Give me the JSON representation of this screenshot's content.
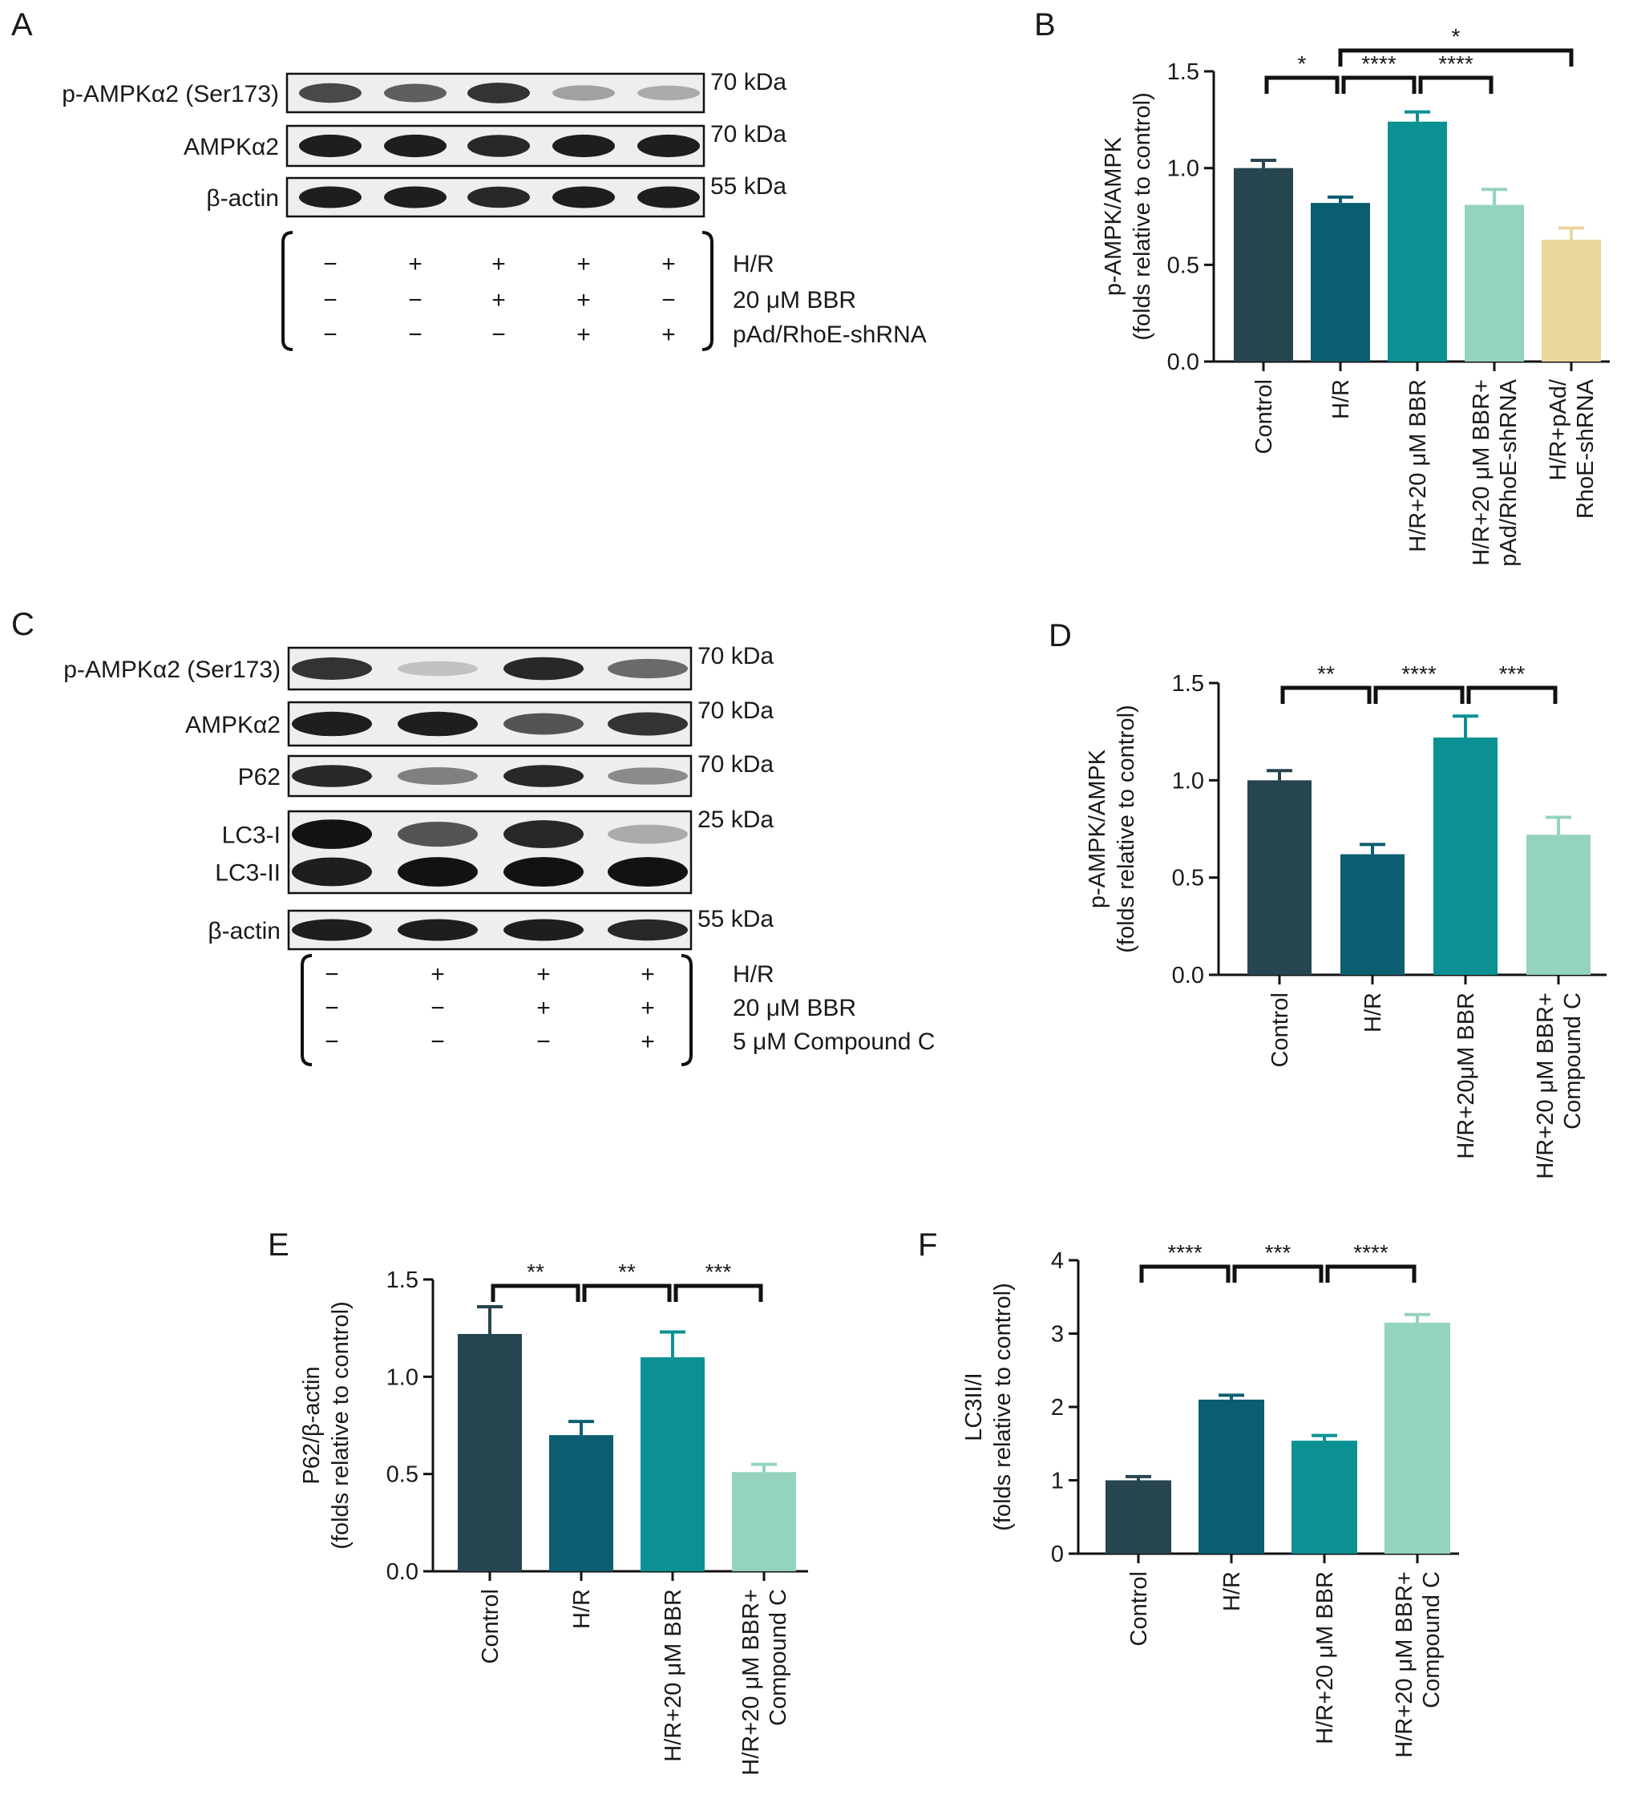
{
  "colors": {
    "control": "#27454f",
    "hr": "#0b5e70",
    "hr_bbr": "#0b9193",
    "light": "#94d3bd",
    "tan": "#ead59c",
    "blot_band": "#121212",
    "blot_bg": "#eeeeee"
  },
  "blots": [
    {
      "panel": "A",
      "rows": [
        {
          "label": "p-AMPKα2 (Ser173)",
          "kda": "70 kDa",
          "intensity": [
            0.75,
            0.65,
            0.85,
            0.35,
            0.3
          ]
        },
        {
          "label": "AMPKα2",
          "kda": "70 kDa",
          "intensity": [
            0.95,
            0.95,
            0.9,
            0.95,
            0.95
          ]
        },
        {
          "label": "β-actin",
          "kda": "55 kDa",
          "intensity": [
            0.95,
            0.95,
            0.9,
            0.95,
            0.95
          ]
        }
      ],
      "conditions": [
        {
          "name": "H/R",
          "signs": [
            "−",
            "+",
            "+",
            "+",
            "+"
          ]
        },
        {
          "name": "20 μM BBR",
          "signs": [
            "−",
            "−",
            "+",
            "+",
            "−"
          ]
        },
        {
          "name": "pAd/RhoE-shRNA",
          "signs": [
            "−",
            "−",
            "−",
            "+",
            "+"
          ]
        }
      ]
    },
    {
      "panel": "C",
      "rows": [
        {
          "label": "p-AMPKα2 (Ser173)",
          "kda": "70 kDa",
          "intensity": [
            0.85,
            0.2,
            0.9,
            0.6
          ]
        },
        {
          "label": "AMPKα2",
          "kda": "70 kDa",
          "intensity": [
            0.95,
            0.95,
            0.7,
            0.85
          ]
        },
        {
          "label": "P62",
          "kda": "70 kDa",
          "intensity": [
            0.9,
            0.5,
            0.9,
            0.45
          ]
        },
        {
          "label": "LC3-I",
          "kda": "25 kDa",
          "intensity": [
            1.0,
            0.7,
            0.9,
            0.3
          ],
          "sublabel": "LC3-II",
          "intensity2": [
            0.95,
            1.0,
            1.0,
            1.0
          ]
        },
        {
          "label": "β-actin",
          "kda": "55 kDa",
          "intensity": [
            0.95,
            0.95,
            0.95,
            0.9
          ]
        }
      ],
      "conditions": [
        {
          "name": "H/R",
          "signs": [
            "−",
            "+",
            "+",
            "+"
          ]
        },
        {
          "name": "20 μM BBR",
          "signs": [
            "−",
            "−",
            "+",
            "+"
          ]
        },
        {
          "name": "5 μM Compound C",
          "signs": [
            "−",
            "−",
            "−",
            "+"
          ]
        }
      ]
    }
  ],
  "chart_data": [
    {
      "panel": "B",
      "type": "bar",
      "ylabel": [
        "p-AMPK/AMPK",
        "(folds relative to control)"
      ],
      "ylim": [
        0,
        1.5
      ],
      "yticks": [
        "0.0",
        "0.5",
        "1.0",
        "1.5"
      ],
      "categories": [
        [
          "Control"
        ],
        [
          "H/R"
        ],
        [
          "H/R+20 μM BBR"
        ],
        [
          "H/R+20 μM BBR+",
          "pAd/RhoE-shRNA"
        ],
        [
          "H/R+pAd/",
          "RhoE-shRNA"
        ]
      ],
      "values": [
        1.0,
        0.82,
        1.24,
        0.81,
        0.63
      ],
      "errors": [
        0.04,
        0.03,
        0.05,
        0.08,
        0.06
      ],
      "colors": [
        "control",
        "hr",
        "hr_bbr",
        "light",
        "tan"
      ],
      "significance": [
        {
          "from": 0,
          "to": 1,
          "label": "*",
          "level": 1
        },
        {
          "from": 1,
          "to": 2,
          "label": "****",
          "level": 1
        },
        {
          "from": 2,
          "to": 3,
          "label": "****",
          "level": 1
        },
        {
          "from": 1,
          "to": 4,
          "label": "*",
          "level": 2
        }
      ]
    },
    {
      "panel": "D",
      "type": "bar",
      "ylabel": [
        "p-AMPK/AMPK",
        "(folds relative to control)"
      ],
      "ylim": [
        0,
        1.5
      ],
      "yticks": [
        "0.0",
        "0.5",
        "1.0",
        "1.5"
      ],
      "categories": [
        [
          "Control"
        ],
        [
          "H/R"
        ],
        [
          "H/R+20μM BBR"
        ],
        [
          "H/R+20 μM BBR+",
          "Compound C"
        ]
      ],
      "values": [
        1.0,
        0.62,
        1.22,
        0.72
      ],
      "errors": [
        0.05,
        0.05,
        0.11,
        0.09
      ],
      "colors": [
        "control",
        "hr",
        "hr_bbr",
        "light"
      ],
      "significance": [
        {
          "from": 0,
          "to": 1,
          "label": "**",
          "level": 1
        },
        {
          "from": 1,
          "to": 2,
          "label": "****",
          "level": 1
        },
        {
          "from": 2,
          "to": 3,
          "label": "***",
          "level": 1
        }
      ]
    },
    {
      "panel": "E",
      "type": "bar",
      "ylabel": [
        "P62/β-actin",
        "(folds relative to control)"
      ],
      "ylim": [
        0,
        1.5
      ],
      "yticks": [
        "0.0",
        "0.5",
        "1.0",
        "1.5"
      ],
      "categories": [
        [
          "Control"
        ],
        [
          "H/R"
        ],
        [
          "H/R+20 μM BBR"
        ],
        [
          "H/R+20 μM BBR+",
          "Compound C"
        ]
      ],
      "values": [
        1.22,
        0.7,
        1.1,
        0.51
      ],
      "errors": [
        0.14,
        0.07,
        0.13,
        0.04
      ],
      "colors": [
        "control",
        "hr",
        "hr_bbr",
        "light"
      ],
      "significance": [
        {
          "from": 0,
          "to": 1,
          "label": "**",
          "level": 1
        },
        {
          "from": 1,
          "to": 2,
          "label": "**",
          "level": 1
        },
        {
          "from": 2,
          "to": 3,
          "label": "***",
          "level": 1
        }
      ]
    },
    {
      "panel": "F",
      "type": "bar",
      "ylabel": [
        "LC3II/I",
        "(folds relative to control)"
      ],
      "ylim": [
        0,
        4
      ],
      "yticks": [
        "0",
        "1",
        "2",
        "3",
        "4"
      ],
      "categories": [
        [
          "Control"
        ],
        [
          "H/R"
        ],
        [
          "H/R+20 μM BBR"
        ],
        [
          "H/R+20 μM BBR+",
          "Compound C"
        ]
      ],
      "values": [
        1.0,
        2.1,
        1.54,
        3.15
      ],
      "errors": [
        0.05,
        0.06,
        0.07,
        0.11
      ],
      "colors": [
        "control",
        "hr",
        "hr_bbr",
        "light"
      ],
      "significance": [
        {
          "from": 0,
          "to": 1,
          "label": "****",
          "level": 1
        },
        {
          "from": 1,
          "to": 2,
          "label": "***",
          "level": 1
        },
        {
          "from": 2,
          "to": 3,
          "label": "****",
          "level": 1
        }
      ]
    }
  ]
}
